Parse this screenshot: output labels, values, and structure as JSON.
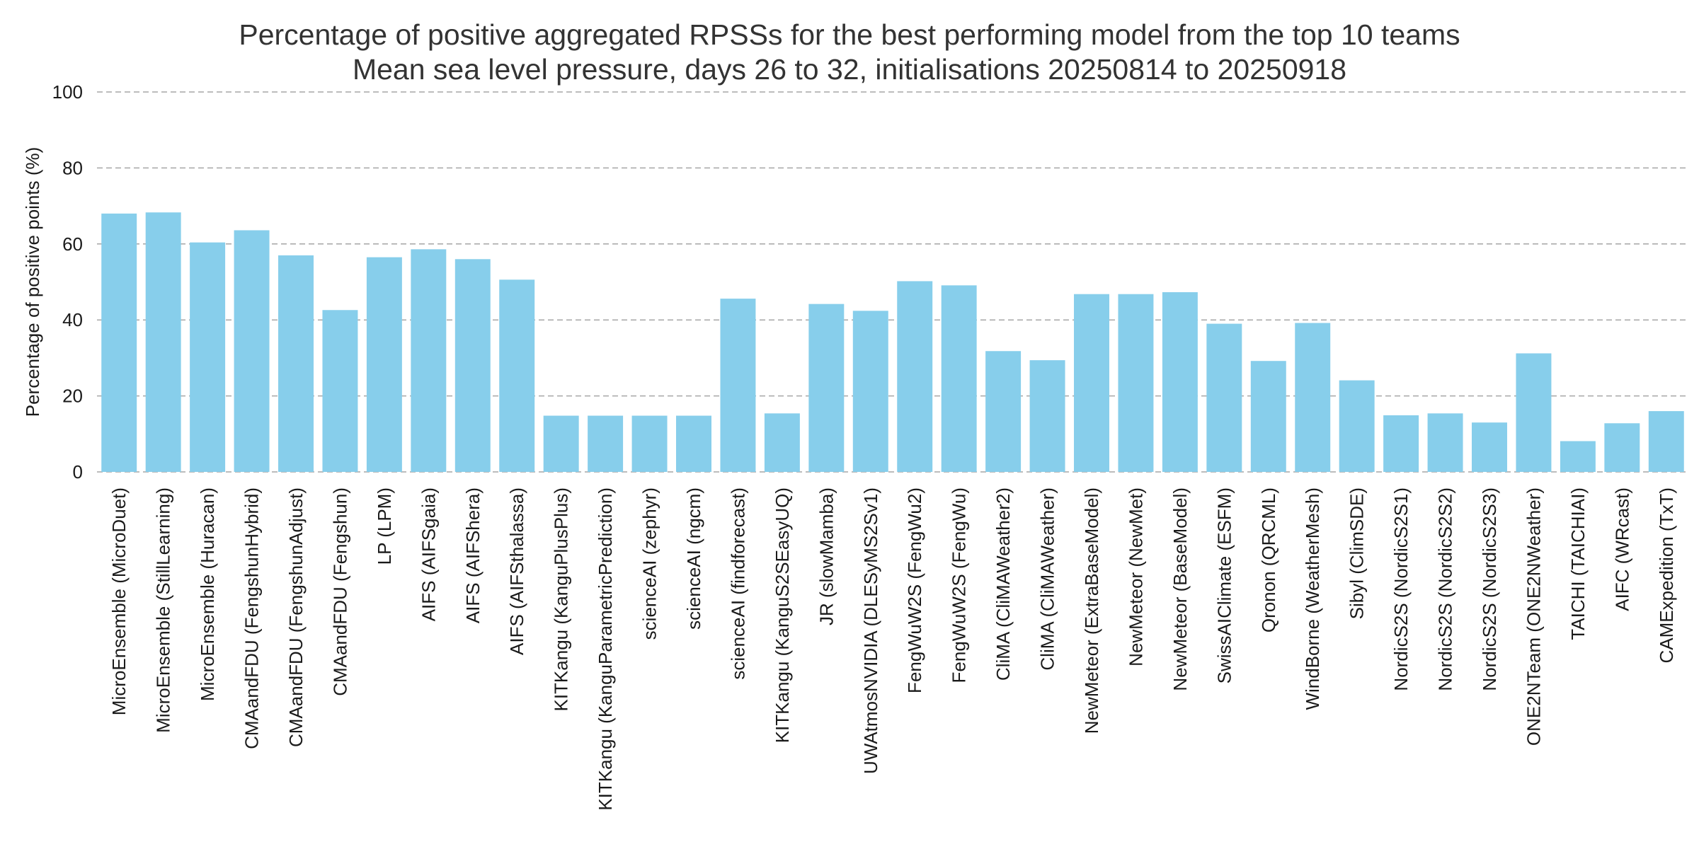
{
  "chart_data": {
    "type": "bar",
    "title": "Percentage of positive aggregated RPSSs for the best performing model from the top 10 teams",
    "subtitle": "Mean sea level pressure, days 26 to 32, initialisations 20250814 to 20250918",
    "xlabel": "",
    "ylabel": "Percentage of positive points (%)",
    "ylim": [
      0,
      100
    ],
    "yticks": [
      0,
      20,
      40,
      60,
      80,
      100
    ],
    "grid": true,
    "bar_color": "#87ceeb",
    "grid_color": "#a6a6a6",
    "categories": [
      "MicroEnsemble (MicroDuet)",
      "MicroEnsemble (StillLearning)",
      "MicroEnsemble (Huracan)",
      "CMAandFDU (FengshunHybrid)",
      "CMAandFDU (FengshunAdjust)",
      "CMAandFDU (Fengshun)",
      "LP (LPM)",
      "AIFS (AIFSgaia)",
      "AIFS (AIFShera)",
      "AIFS (AIFSthalassa)",
      "KITKangu (KanguPlusPlus)",
      "KITKangu (KanguParametricPrediction)",
      "scienceAI (zephyr)",
      "scienceAI (ngcm)",
      "scienceAI (findforecast)",
      "KITKangu (KanguS2SEasyUQ)",
      "JR (slowMamba)",
      "UWAtmosNVIDIA (DLESyMS2Sv1)",
      "FengWuW2S (FengWu2)",
      "FengWuW2S (FengWu)",
      "CliMA (CliMAWeather2)",
      "CliMA (CliMAWeather)",
      "NewMeteor (ExtraBaseModel)",
      "NewMeteor (NewMet)",
      "NewMeteor (BaseModel)",
      "SwissAIClimate (ESFM)",
      "Qronon (QRCML)",
      "WindBorne (WeatherMesh)",
      "Sibyl (ClimSDE)",
      "NordicS2S (NordicS2S1)",
      "NordicS2S (NordicS2S2)",
      "NordicS2S (NordicS2S3)",
      "ONE2NTeam (ONE2NWeather)",
      "TAICHI (TAICHIAI)",
      "AIFC (WRcast)",
      "CAMExpedition (TxT)"
    ],
    "values": [
      68.0,
      68.3,
      60.4,
      63.6,
      57.0,
      42.6,
      56.5,
      58.6,
      56.0,
      50.6,
      14.8,
      14.8,
      14.8,
      14.8,
      45.6,
      15.4,
      44.2,
      42.4,
      50.2,
      49.1,
      31.8,
      29.4,
      46.8,
      46.8,
      47.3,
      39.0,
      29.2,
      39.2,
      24.1,
      14.9,
      15.4,
      13.0,
      31.2,
      8.1,
      12.8,
      16.0
    ]
  }
}
